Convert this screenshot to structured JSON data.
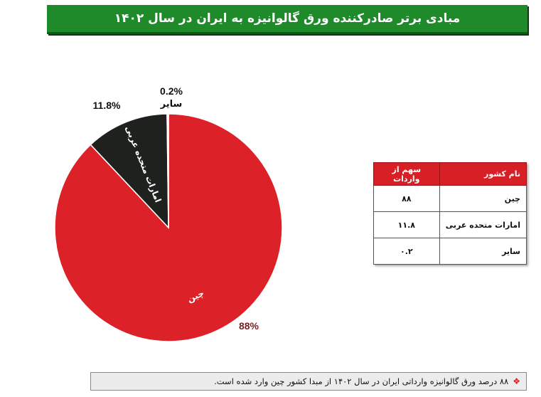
{
  "title": "مبادی برتر صادرکننده ورق گالوانیزه به ایران در سال ۱۴۰۲",
  "chart_data": {
    "type": "pie",
    "title": "مبادی برتر صادرکننده ورق گالوانیزه به ایران در سال ۱۴۰۲",
    "slices": [
      {
        "label": "چین",
        "value": 88,
        "percent_label": "88%",
        "color": "#dd2129"
      },
      {
        "label": "امارات متحده عربی",
        "value": 11.8,
        "percent_label": "11.8%",
        "color": "#1f211f"
      },
      {
        "label": "سایر",
        "value": 0.2,
        "percent_label": "0.2%",
        "color": "#e0e0e0"
      }
    ]
  },
  "table": {
    "headers": {
      "country": "نام کشور",
      "share": "سهم از واردات"
    },
    "rows": [
      {
        "country": "چین",
        "share": "۸۸"
      },
      {
        "country": "امارات متحده عربی",
        "share": "۱۱.۸"
      },
      {
        "country": "سایر",
        "share": "۰.۲"
      }
    ]
  },
  "note": {
    "bullet": "❖",
    "text": "۸۸ درصد ورق گالوانیزه وارداتی ایران در سال ۱۴۰۲ از مبدا کشور چین وارد شده است."
  }
}
